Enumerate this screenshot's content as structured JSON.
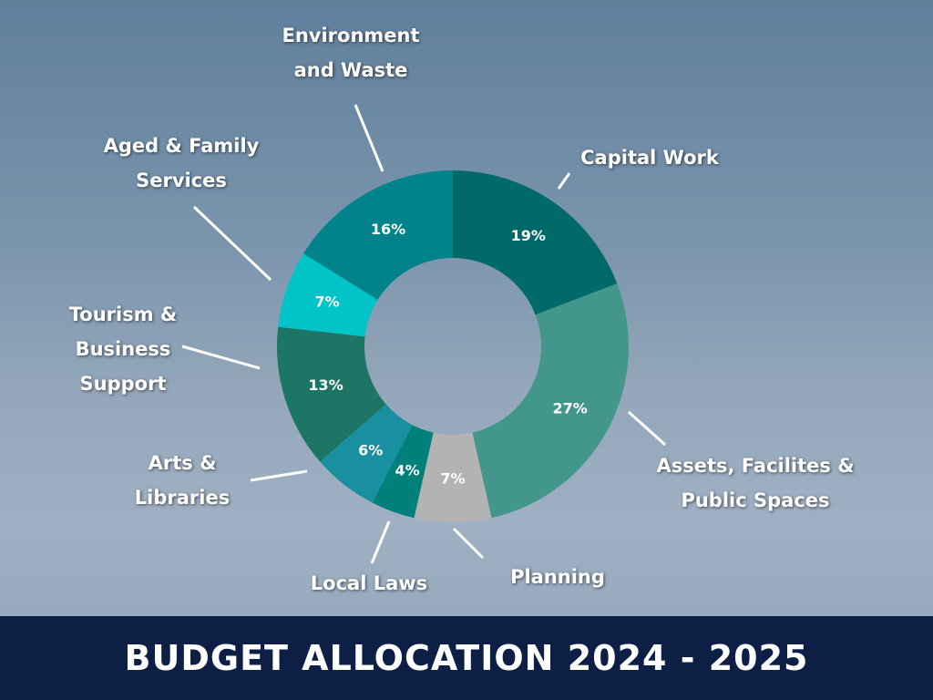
{
  "chart_data": {
    "type": "donut",
    "title": "BUDGET ALLOCATION 2024 - 2025",
    "categories": [
      "Capital Work",
      "Assets, Facilites & Public Spaces",
      "Planning",
      "Local Laws",
      "Arts & Libraries",
      "Tourism & Business Support",
      "Aged & Family Services",
      "Environment and Waste"
    ],
    "values": [
      19,
      27,
      7,
      4,
      6,
      13,
      7,
      16
    ],
    "value_labels": [
      "19%",
      "27%",
      "7%",
      "4%",
      "6%",
      "13%",
      "7%",
      "16%"
    ],
    "colors": [
      "#00696a",
      "#43968a",
      "#b3b3b3",
      "#00807a",
      "#1890a0",
      "#1d7566",
      "#00c4c8",
      "#00838a"
    ]
  }
}
